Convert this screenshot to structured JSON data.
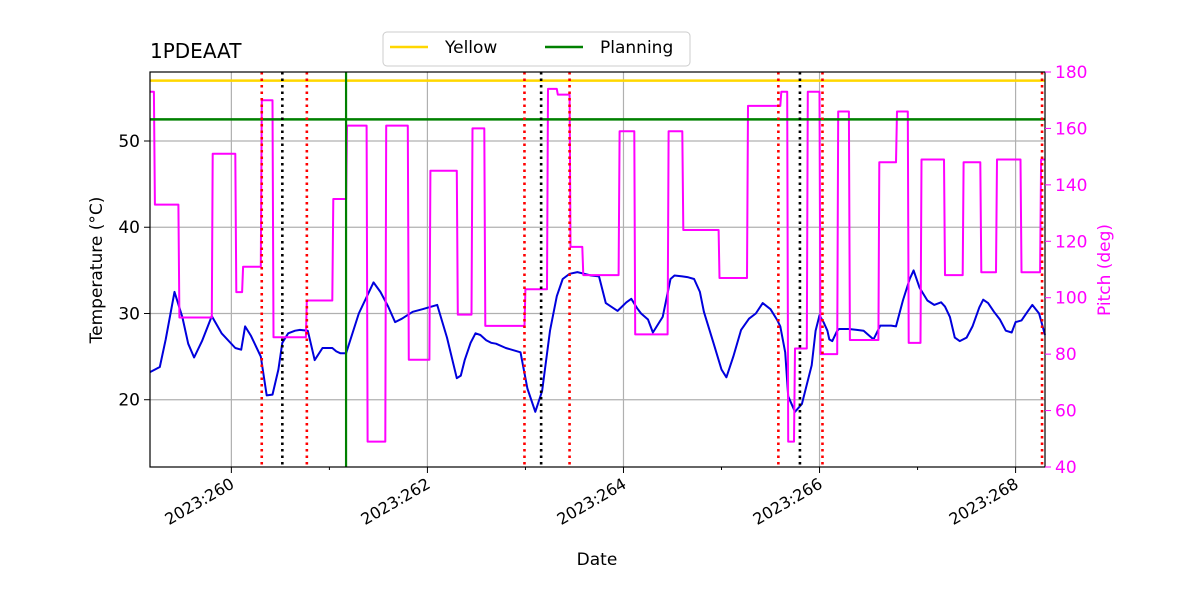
{
  "chart_data": {
    "type": "line",
    "title": "1PDEAAT",
    "xlabel": "Date",
    "ylabel": "Temperature ($^\\circ$C)",
    "ylabel_display": "Temperature (°C)",
    "y2label": "Pitch (deg)",
    "xlim": [
      259.17,
      268.3
    ],
    "ylim": [
      12.2,
      58.0
    ],
    "y2lim": [
      40,
      180
    ],
    "xticks": [
      {
        "value": 260,
        "label": "2023:260"
      },
      {
        "value": 262,
        "label": "2023:262"
      },
      {
        "value": 264,
        "label": "2023:264"
      },
      {
        "value": 266,
        "label": "2023:266"
      },
      {
        "value": 268,
        "label": "2023:268"
      }
    ],
    "yticks": [
      20,
      30,
      40,
      50
    ],
    "y2ticks": [
      40,
      60,
      80,
      100,
      120,
      140,
      160,
      180
    ],
    "grid": true,
    "legend": {
      "placement": "top-center-outside",
      "entries": [
        {
          "label": "Yellow",
          "color": "#ffd700"
        },
        {
          "label": "Planning",
          "color": "#008000"
        }
      ]
    },
    "limits": [
      {
        "name": "Yellow",
        "value": 57.0,
        "color": "#ffd700"
      },
      {
        "name": "Planning",
        "value": 52.5,
        "color": "#008000"
      }
    ],
    "vlines": [
      {
        "x": 260.31,
        "color": "#ff0000",
        "style": "dotted"
      },
      {
        "x": 260.52,
        "color": "#000000",
        "style": "dotted"
      },
      {
        "x": 260.77,
        "color": "#ff0000",
        "style": "dotted"
      },
      {
        "x": 261.17,
        "color": "#008000",
        "style": "solid"
      },
      {
        "x": 262.99,
        "color": "#ff0000",
        "style": "dotted"
      },
      {
        "x": 263.16,
        "color": "#000000",
        "style": "dotted"
      },
      {
        "x": 263.45,
        "color": "#ff0000",
        "style": "dotted"
      },
      {
        "x": 265.58,
        "color": "#ff0000",
        "style": "dotted"
      },
      {
        "x": 265.8,
        "color": "#000000",
        "style": "dotted"
      },
      {
        "x": 266.03,
        "color": "#ff0000",
        "style": "dotted"
      },
      {
        "x": 268.27,
        "color": "#ff0000",
        "style": "dotted"
      }
    ],
    "series": [
      {
        "name": "Temperature",
        "axis": "left",
        "color": "#0000dd",
        "x": [
          259.17,
          259.27,
          259.33,
          259.42,
          259.5,
          259.56,
          259.62,
          259.7,
          259.8,
          259.9,
          260.04,
          260.1,
          260.14,
          260.2,
          260.3,
          260.36,
          260.42,
          260.48,
          260.52,
          260.58,
          260.65,
          260.7,
          260.78,
          260.85,
          260.93,
          261.03,
          261.07,
          261.11,
          261.17,
          261.3,
          261.45,
          261.52,
          261.6,
          261.67,
          261.74,
          261.85,
          261.95,
          262.1,
          262.2,
          262.3,
          262.34,
          262.38,
          262.44,
          262.49,
          262.54,
          262.6,
          262.65,
          262.7,
          262.8,
          262.95,
          263.02,
          263.1,
          263.17,
          263.25,
          263.32,
          263.38,
          263.45,
          263.53,
          263.6,
          263.67,
          263.75,
          263.82,
          263.94,
          264.03,
          264.08,
          264.14,
          264.18,
          264.25,
          264.3,
          264.4,
          264.48,
          264.52,
          264.6,
          264.66,
          264.72,
          264.78,
          264.82,
          264.92,
          265.0,
          265.05,
          265.12,
          265.2,
          265.28,
          265.35,
          265.42,
          265.5,
          265.57,
          265.6,
          265.65,
          265.68,
          265.75,
          265.82,
          265.92,
          265.96,
          266.0,
          266.04,
          266.08,
          266.1,
          266.13,
          266.18,
          266.2,
          266.24,
          266.3,
          266.38,
          266.45,
          266.55,
          266.62,
          266.67,
          266.73,
          266.78,
          266.85,
          266.92,
          266.96,
          267.02,
          267.1,
          267.17,
          267.24,
          267.28,
          267.33,
          267.38,
          267.43,
          267.5,
          267.56,
          267.63,
          267.67,
          267.72,
          267.78,
          267.84,
          267.9,
          267.96,
          268.0,
          268.06,
          268.12,
          268.17,
          268.24,
          268.3
        ],
        "y": [
          23.2,
          23.8,
          27.0,
          32.5,
          29.6,
          26.5,
          24.9,
          26.8,
          29.7,
          27.7,
          26.0,
          25.8,
          28.5,
          27.4,
          25.0,
          20.5,
          20.6,
          23.5,
          26.6,
          27.7,
          28.0,
          28.1,
          28.0,
          24.6,
          26.0,
          26.0,
          25.6,
          25.4,
          25.4,
          30.0,
          33.6,
          32.5,
          30.8,
          29.0,
          29.4,
          30.2,
          30.5,
          31.0,
          27.2,
          22.5,
          22.8,
          24.6,
          26.6,
          27.7,
          27.5,
          26.9,
          26.6,
          26.5,
          26.0,
          25.5,
          21.3,
          18.6,
          21.0,
          28.0,
          32.0,
          34.0,
          34.6,
          34.8,
          34.6,
          34.4,
          34.3,
          31.2,
          30.3,
          31.3,
          31.7,
          30.6,
          30.0,
          29.3,
          27.8,
          29.6,
          34.0,
          34.4,
          34.3,
          34.2,
          34.0,
          32.5,
          30.2,
          26.5,
          23.5,
          22.6,
          25.0,
          28.1,
          29.4,
          30.0,
          31.2,
          30.5,
          29.2,
          28.5,
          25.5,
          20.4,
          18.6,
          19.5,
          24.0,
          28.0,
          29.8,
          29.0,
          28.0,
          27.0,
          26.8,
          28.0,
          28.2,
          28.2,
          28.2,
          28.1,
          28.0,
          27.0,
          28.6,
          28.6,
          28.6,
          28.5,
          31.5,
          34.0,
          35.0,
          33.0,
          31.5,
          31.0,
          31.3,
          30.8,
          29.6,
          27.2,
          26.8,
          27.2,
          28.5,
          30.7,
          31.6,
          31.2,
          30.2,
          29.3,
          28.0,
          27.8,
          29.0,
          29.2,
          30.2,
          31.0,
          30.0,
          27.5
        ]
      },
      {
        "name": "Pitch",
        "axis": "right",
        "color": "#ff00ff",
        "x": [
          259.17,
          259.21,
          259.22,
          259.46,
          259.47,
          259.8,
          259.81,
          260.04,
          260.05,
          260.11,
          260.12,
          260.3,
          260.31,
          260.42,
          260.43,
          260.76,
          260.77,
          261.03,
          261.04,
          261.17,
          261.18,
          261.38,
          261.39,
          261.57,
          261.58,
          261.8,
          261.81,
          262.02,
          262.03,
          262.3,
          262.31,
          262.45,
          262.46,
          262.58,
          262.59,
          262.99,
          263.0,
          263.22,
          263.23,
          263.32,
          263.33,
          263.45,
          263.46,
          263.58,
          263.59,
          263.95,
          263.96,
          264.11,
          264.12,
          264.45,
          264.46,
          264.6,
          264.61,
          264.97,
          264.98,
          265.26,
          265.27,
          265.6,
          265.61,
          265.67,
          265.68,
          265.74,
          265.75,
          265.87,
          265.88,
          266.0,
          266.01,
          266.18,
          266.19,
          266.3,
          266.31,
          266.6,
          266.61,
          266.78,
          266.79,
          266.9,
          266.91,
          267.03,
          267.04,
          267.27,
          267.28,
          267.46,
          267.47,
          267.64,
          267.65,
          267.8,
          267.81,
          268.05,
          268.06,
          268.25,
          268.26,
          268.3
        ],
        "y": [
          173,
          173,
          133,
          133,
          93,
          93,
          151,
          151,
          102,
          102,
          111,
          111,
          170,
          170,
          86,
          86,
          99,
          99,
          135,
          135,
          161,
          161,
          49,
          49,
          161,
          161,
          78,
          78,
          145,
          145,
          94,
          94,
          160,
          160,
          90,
          90,
          103,
          103,
          174,
          174,
          172,
          172,
          118,
          118,
          108,
          108,
          159,
          159,
          87,
          87,
          159,
          159,
          124,
          124,
          107,
          107,
          168,
          168,
          173,
          173,
          49,
          49,
          82,
          82,
          173,
          173,
          80,
          80,
          166,
          166,
          85,
          85,
          148,
          148,
          166,
          166,
          84,
          84,
          149,
          149,
          108,
          108,
          148,
          148,
          109,
          109,
          149,
          149,
          109,
          109,
          149,
          149
        ]
      }
    ]
  }
}
